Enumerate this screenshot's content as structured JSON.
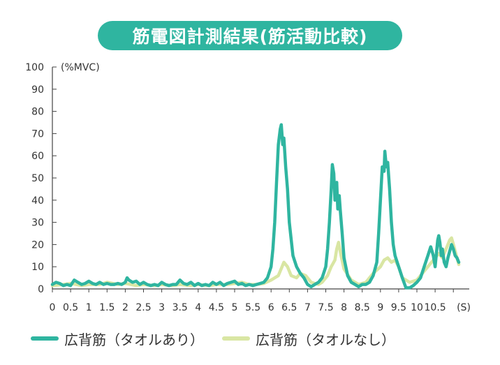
{
  "title": "筋電図計測結果(筋活動比較)",
  "colors": {
    "title_bg": "#2fb5a0",
    "series_with_towel": "#2fb5a0",
    "series_without_towel": "#d9e6a3",
    "axis": "#444444",
    "text": "#333333"
  },
  "chart_data": {
    "type": "line",
    "title": "筋電図計測結果(筋活動比較)",
    "ylabel": "(%MVC)",
    "xunit": "(S)",
    "xlim": [
      0,
      11
    ],
    "ylim": [
      0,
      100
    ],
    "yticks": [
      "0",
      "10",
      "20",
      "30",
      "40",
      "50",
      "60",
      "70",
      "80",
      "90",
      "100"
    ],
    "xticks": [
      "0",
      "0.5",
      "1",
      "1.5",
      "2",
      "2.5",
      "3",
      "3.5",
      "4",
      "4.5",
      "5",
      "5.5",
      "6",
      "6.5",
      "7",
      "7.5",
      "8",
      "8.5",
      "9",
      "9.5",
      "10",
      "10.5"
    ],
    "grid": false,
    "legend_position": "bottom-left",
    "series": [
      {
        "name": "広背筋（タオルなし）",
        "color": "#d9e6a3",
        "points": [
          [
            0,
            1.5
          ],
          [
            0.3,
            2
          ],
          [
            0.5,
            2.5
          ],
          [
            0.8,
            1.5
          ],
          [
            1,
            2
          ],
          [
            1.3,
            2
          ],
          [
            1.5,
            3
          ],
          [
            1.8,
            2
          ],
          [
            2,
            2.5
          ],
          [
            2.3,
            1.5
          ],
          [
            2.5,
            2
          ],
          [
            2.8,
            1.5
          ],
          [
            3,
            2
          ],
          [
            3.3,
            1.5
          ],
          [
            3.5,
            2
          ],
          [
            3.8,
            1.5
          ],
          [
            4,
            2
          ],
          [
            4.3,
            1.5
          ],
          [
            4.5,
            2
          ],
          [
            4.8,
            2
          ],
          [
            5,
            2.5
          ],
          [
            5.2,
            3
          ],
          [
            5.4,
            2
          ],
          [
            5.6,
            2
          ],
          [
            5.8,
            2.5
          ],
          [
            6,
            4
          ],
          [
            6.2,
            6
          ],
          [
            6.3,
            10
          ],
          [
            6.35,
            12
          ],
          [
            6.45,
            10
          ],
          [
            6.55,
            6
          ],
          [
            6.7,
            5
          ],
          [
            6.8,
            7
          ],
          [
            6.95,
            6
          ],
          [
            7.1,
            3
          ],
          [
            7.3,
            2
          ],
          [
            7.4,
            3
          ],
          [
            7.55,
            6
          ],
          [
            7.65,
            10
          ],
          [
            7.75,
            13
          ],
          [
            7.8,
            18
          ],
          [
            7.85,
            21
          ],
          [
            7.92,
            15
          ],
          [
            8,
            9
          ],
          [
            8.2,
            4
          ],
          [
            8.4,
            2
          ],
          [
            8.6,
            3
          ],
          [
            8.8,
            7
          ],
          [
            9,
            10
          ],
          [
            9.1,
            13
          ],
          [
            9.2,
            14
          ],
          [
            9.3,
            12
          ],
          [
            9.4,
            13
          ],
          [
            9.5,
            10
          ],
          [
            9.6,
            5
          ],
          [
            9.8,
            3
          ],
          [
            10,
            4
          ],
          [
            10.2,
            8
          ],
          [
            10.35,
            11
          ],
          [
            10.5,
            14
          ],
          [
            10.6,
            16
          ],
          [
            10.7,
            14
          ],
          [
            10.8,
            18
          ],
          [
            10.9,
            22
          ],
          [
            10.95,
            23
          ],
          [
            11.02,
            19
          ],
          [
            11.1,
            14
          ],
          [
            11.15,
            11
          ]
        ]
      },
      {
        "name": "広背筋（タオルあり）",
        "color": "#2fb5a0",
        "points": [
          [
            0,
            2
          ],
          [
            0.1,
            3
          ],
          [
            0.2,
            2.5
          ],
          [
            0.3,
            1.5
          ],
          [
            0.4,
            2
          ],
          [
            0.5,
            1.5
          ],
          [
            0.6,
            4
          ],
          [
            0.7,
            3
          ],
          [
            0.8,
            2
          ],
          [
            0.9,
            2.5
          ],
          [
            1,
            3.5
          ],
          [
            1.1,
            2.5
          ],
          [
            1.2,
            2
          ],
          [
            1.3,
            3
          ],
          [
            1.4,
            2
          ],
          [
            1.5,
            2.5
          ],
          [
            1.6,
            2
          ],
          [
            1.7,
            2
          ],
          [
            1.8,
            2.5
          ],
          [
            1.9,
            2
          ],
          [
            2,
            3
          ],
          [
            2.05,
            5
          ],
          [
            2.1,
            4
          ],
          [
            2.2,
            3
          ],
          [
            2.3,
            3.5
          ],
          [
            2.4,
            2
          ],
          [
            2.5,
            3
          ],
          [
            2.6,
            2
          ],
          [
            2.7,
            1.5
          ],
          [
            2.8,
            2
          ],
          [
            2.9,
            1.5
          ],
          [
            3,
            3
          ],
          [
            3.1,
            2
          ],
          [
            3.2,
            1.5
          ],
          [
            3.3,
            2
          ],
          [
            3.4,
            2
          ],
          [
            3.5,
            4
          ],
          [
            3.6,
            2.5
          ],
          [
            3.7,
            2
          ],
          [
            3.8,
            3
          ],
          [
            3.9,
            1.5
          ],
          [
            4,
            2.5
          ],
          [
            4.1,
            1.5
          ],
          [
            4.2,
            2
          ],
          [
            4.3,
            1.5
          ],
          [
            4.4,
            3
          ],
          [
            4.5,
            2
          ],
          [
            4.6,
            3
          ],
          [
            4.7,
            1.5
          ],
          [
            4.8,
            2.5
          ],
          [
            4.9,
            3
          ],
          [
            5,
            3.5
          ],
          [
            5.1,
            2
          ],
          [
            5.2,
            2.5
          ],
          [
            5.3,
            1.5
          ],
          [
            5.4,
            2
          ],
          [
            5.5,
            1.5
          ],
          [
            5.6,
            2
          ],
          [
            5.7,
            2.5
          ],
          [
            5.8,
            3
          ],
          [
            5.9,
            5
          ],
          [
            6,
            10
          ],
          [
            6.05,
            18
          ],
          [
            6.1,
            30
          ],
          [
            6.15,
            48
          ],
          [
            6.2,
            65
          ],
          [
            6.25,
            72
          ],
          [
            6.28,
            74
          ],
          [
            6.32,
            65
          ],
          [
            6.35,
            68
          ],
          [
            6.4,
            55
          ],
          [
            6.45,
            45
          ],
          [
            6.5,
            30
          ],
          [
            6.6,
            15
          ],
          [
            6.7,
            10
          ],
          [
            6.8,
            7
          ],
          [
            6.9,
            5
          ],
          [
            7,
            2
          ],
          [
            7.1,
            1
          ],
          [
            7.2,
            2
          ],
          [
            7.3,
            3
          ],
          [
            7.4,
            5
          ],
          [
            7.5,
            10
          ],
          [
            7.55,
            18
          ],
          [
            7.6,
            30
          ],
          [
            7.65,
            45
          ],
          [
            7.68,
            56
          ],
          [
            7.72,
            52
          ],
          [
            7.75,
            40
          ],
          [
            7.8,
            48
          ],
          [
            7.83,
            36
          ],
          [
            7.87,
            42
          ],
          [
            7.9,
            35
          ],
          [
            7.95,
            25
          ],
          [
            8,
            14
          ],
          [
            8.1,
            6
          ],
          [
            8.2,
            3
          ],
          [
            8.3,
            2
          ],
          [
            8.4,
            1
          ],
          [
            8.5,
            2
          ],
          [
            8.6,
            2
          ],
          [
            8.7,
            3
          ],
          [
            8.8,
            6
          ],
          [
            8.9,
            12
          ],
          [
            8.95,
            25
          ],
          [
            9,
            40
          ],
          [
            9.05,
            55
          ],
          [
            9.1,
            53
          ],
          [
            9.12,
            62
          ],
          [
            9.16,
            55
          ],
          [
            9.2,
            57
          ],
          [
            9.25,
            45
          ],
          [
            9.3,
            30
          ],
          [
            9.35,
            20
          ],
          [
            9.4,
            15
          ],
          [
            9.5,
            10
          ],
          [
            9.6,
            5
          ],
          [
            9.7,
            0.5
          ],
          [
            9.8,
            0.5
          ],
          [
            9.9,
            1.5
          ],
          [
            10,
            3
          ],
          [
            10.1,
            5
          ],
          [
            10.2,
            10
          ],
          [
            10.3,
            15
          ],
          [
            10.38,
            19
          ],
          [
            10.45,
            15
          ],
          [
            10.5,
            10
          ],
          [
            10.57,
            22
          ],
          [
            10.6,
            24
          ],
          [
            10.63,
            21
          ],
          [
            10.67,
            15
          ],
          [
            10.7,
            18
          ],
          [
            10.75,
            12
          ],
          [
            10.8,
            10
          ],
          [
            10.85,
            14
          ],
          [
            10.9,
            17
          ],
          [
            10.95,
            20
          ],
          [
            11,
            18
          ],
          [
            11.05,
            15
          ],
          [
            11.1,
            14
          ],
          [
            11.15,
            12
          ]
        ]
      }
    ]
  },
  "legend": [
    {
      "label": "広背筋（タオルあり）",
      "color": "#2fb5a0"
    },
    {
      "label": "広背筋（タオルなし）",
      "color": "#d9e6a3"
    }
  ]
}
